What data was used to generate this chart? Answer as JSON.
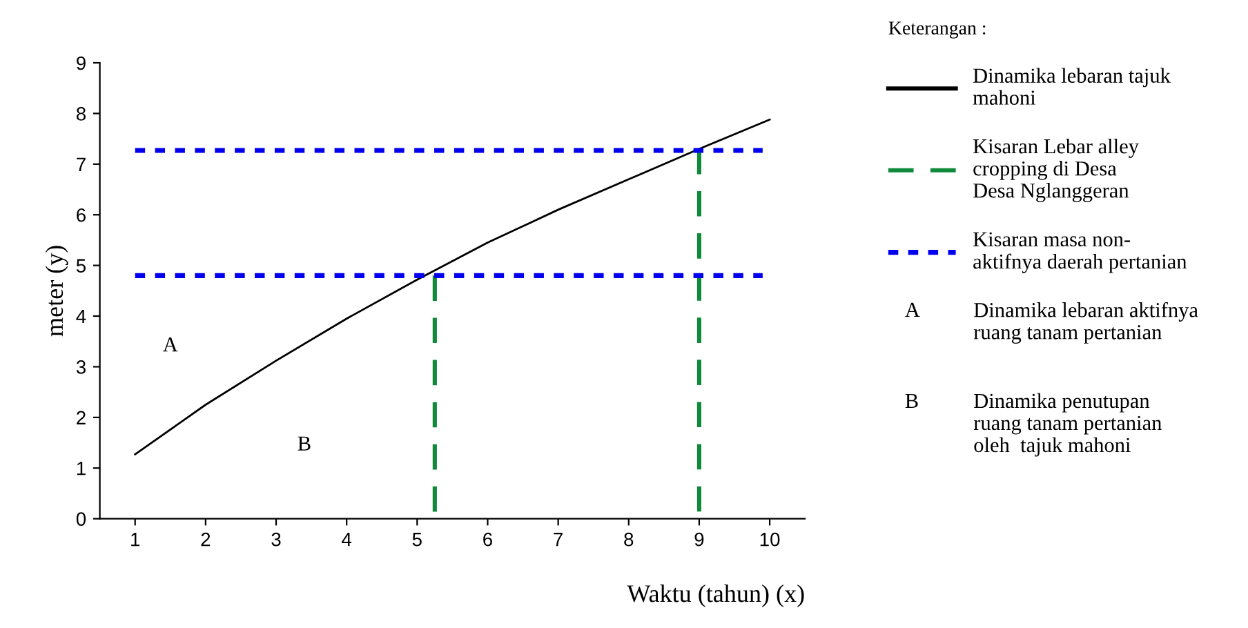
{
  "chart_data": {
    "type": "line",
    "xlabel": "Waktu (tahun) (x)",
    "ylabel": "meter (y)",
    "legend_title": "Keterangan :",
    "x": [
      1,
      2,
      3,
      4,
      5,
      6,
      7,
      8,
      9,
      10
    ],
    "series": [
      {
        "name": "Dinamika lebaran tajuk\nmahoni",
        "color": "#000000",
        "line_style": "solid",
        "values": [
          1.27,
          2.25,
          3.12,
          3.95,
          4.72,
          5.45,
          6.1,
          6.7,
          7.3,
          7.88
        ]
      },
      {
        "name": "Kisaran Lebar alley\ncropping di Desa\nDesa Nglanggeran",
        "color": "#108a3a",
        "line_style": "dashed",
        "x": [
          5.25,
          5.25
        ],
        "values": [
          4.8,
          0
        ]
      },
      {
        "color": "#108a3a",
        "line_style": "dashed",
        "x": [
          9,
          9
        ],
        "values": [
          7.3,
          0
        ]
      },
      {
        "name": "Kisaran masa non-\naktifnya daerah pertanian",
        "color": "#0000ee",
        "line_style": "dotted",
        "x": [
          1,
          9.9
        ],
        "values": [
          4.8,
          4.8
        ]
      },
      {
        "color": "#0000ee",
        "line_style": "dotted",
        "x": [
          1,
          9.9
        ],
        "values": [
          7.27,
          7.27
        ]
      }
    ],
    "annotations": [
      "A",
      "B",
      "A",
      "Dinamika lebaran aktifnya\nruang tanam pertanian",
      "B",
      "Dinamika penutupan\nruang tanam pertanian\noleh  tajuk mahoni"
    ],
    "xlim": [
      0.5,
      10.5
    ],
    "xticks": [
      1,
      2,
      3,
      4,
      5,
      6,
      7,
      8,
      9,
      10
    ],
    "ylim": [
      0,
      9
    ],
    "yticks": [
      0,
      1,
      2,
      3,
      4,
      5,
      6,
      7,
      8,
      9
    ],
    "grid": false,
    "marker": "none",
    "legend": "right"
  }
}
